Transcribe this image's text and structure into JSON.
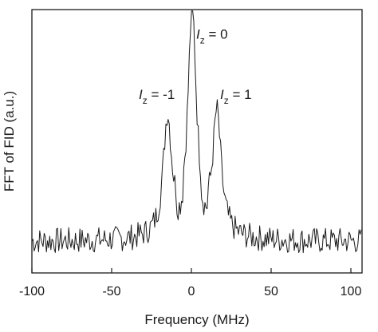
{
  "chart_data": {
    "type": "line",
    "title": "",
    "xlabel": "Frequency (MHz)",
    "ylabel": "FFT of FID (a.u.)",
    "xlim": [
      -100,
      107
    ],
    "ylim": [
      0,
      1
    ],
    "x_ticks": [
      -100,
      -50,
      0,
      50,
      100
    ],
    "x_tick_labels": [
      "-100",
      "-50",
      "0",
      "50",
      "100"
    ],
    "y_ticks_labeled": false,
    "grid": false,
    "legend": "none",
    "line_color": "#1a1a1a",
    "series": [
      {
        "values_description_free": true,
        "peaks": [
          {
            "x": -15,
            "y": 0.57
          },
          {
            "x": 0.5,
            "y": 0.98
          },
          {
            "x": 16,
            "y": 0.58
          }
        ],
        "baseline_level": 0.12,
        "noise_amplitude": 0.05
      }
    ],
    "annotations": [
      {
        "italic": "I",
        "sub": "z",
        "rest": " = -1",
        "x": -33,
        "y": 0.66
      },
      {
        "italic": "I",
        "sub": "z",
        "rest": " = 0",
        "x": 3,
        "y": 0.89
      },
      {
        "italic": "I",
        "sub": "z",
        "rest": " = 1",
        "x": 18,
        "y": 0.66
      }
    ]
  }
}
